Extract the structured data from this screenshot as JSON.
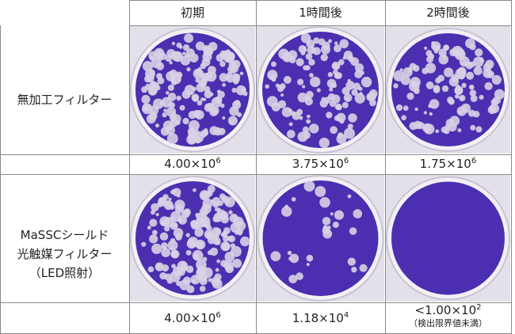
{
  "header": {
    "columns": [
      "初期",
      "1時間後",
      "2時間後"
    ]
  },
  "rows": [
    {
      "label": [
        "無加工フィルター"
      ],
      "counts": [
        {
          "base": "4.00×10",
          "exp": "6"
        },
        {
          "base": "3.75×10",
          "exp": "6"
        },
        {
          "base": "1.75×10",
          "exp": "6"
        }
      ]
    },
    {
      "label": [
        "MaSSCシールド",
        "光触媒フィルター",
        "（LED照射）"
      ],
      "counts": [
        {
          "base": "4.00×10",
          "exp": "6"
        },
        {
          "base": "1.18×10",
          "exp": "4"
        },
        {
          "base": "<1.00×10",
          "exp": "2",
          "note": "（検出限界値未満）"
        }
      ]
    }
  ]
}
